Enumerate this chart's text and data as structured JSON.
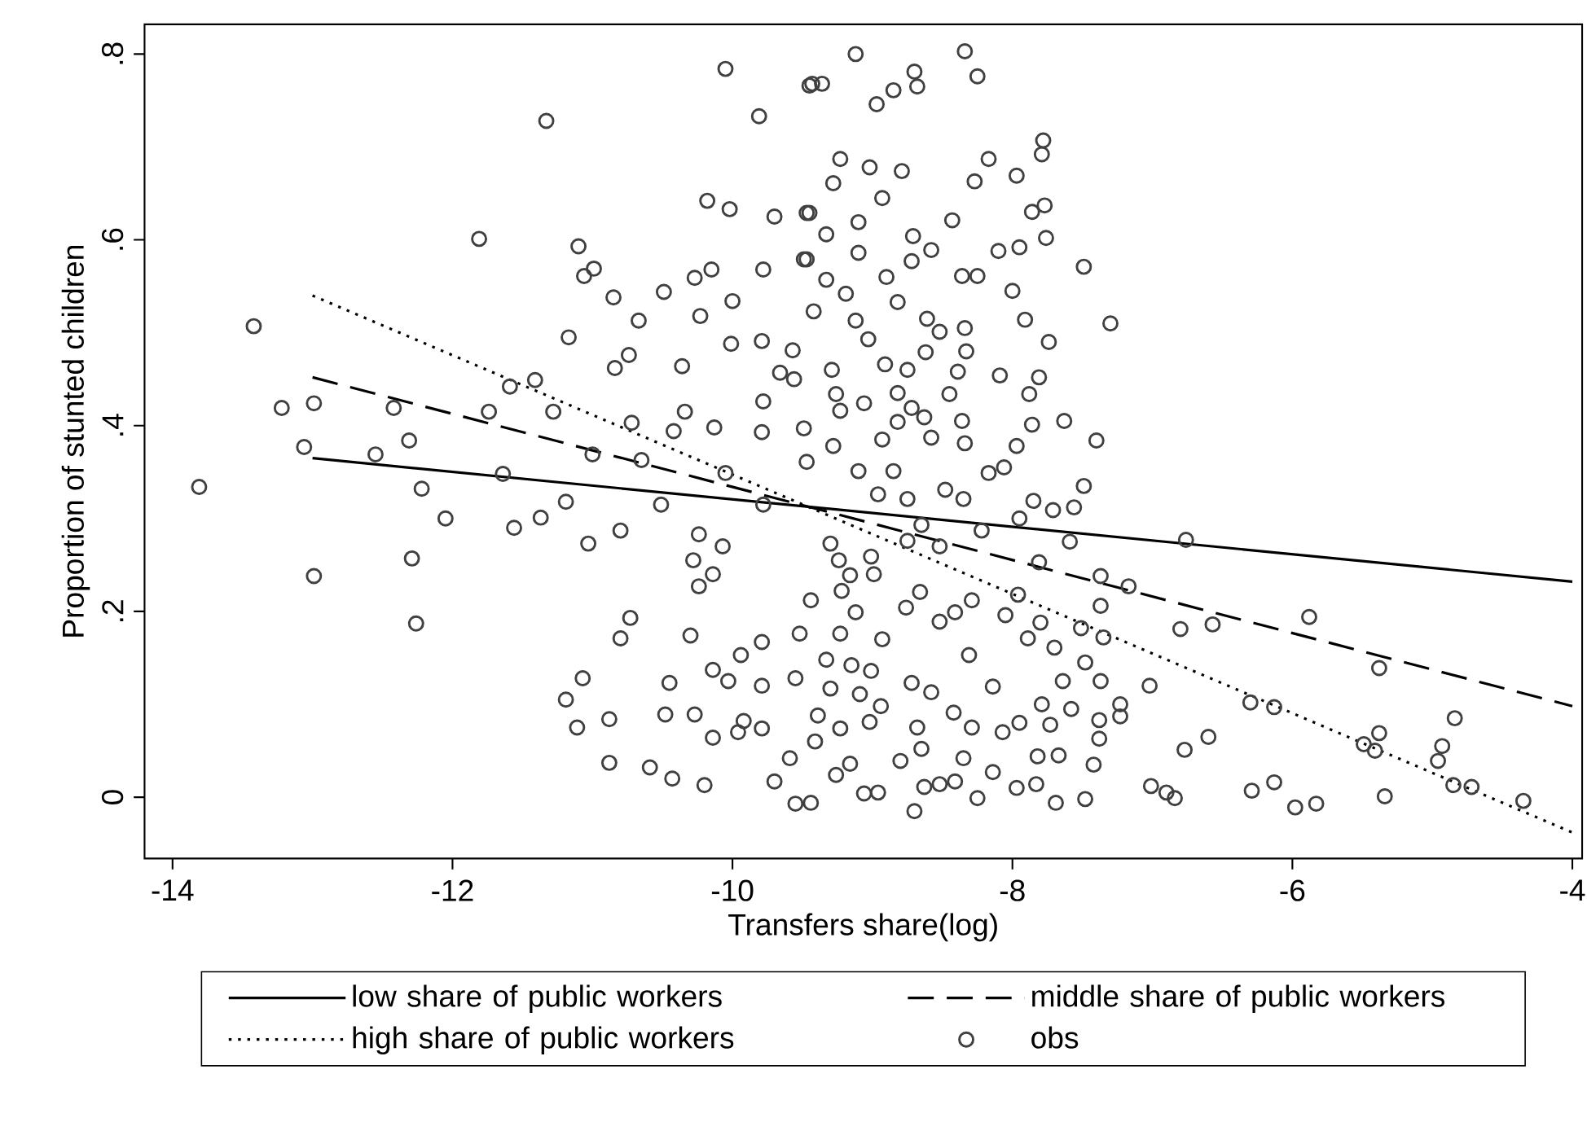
{
  "chart_data": {
    "type": "scatter",
    "xlabel": "Transfers share(log)",
    "ylabel": "Proportion of stunted children",
    "xlim": [
      -14.2,
      -3.93
    ],
    "ylim": [
      -0.066,
      0.832
    ],
    "xticks": [
      -14,
      -12,
      -10,
      -8,
      -6,
      -4
    ],
    "yticks": [
      {
        "value": 0,
        "label": "0"
      },
      {
        "value": 0.2,
        "label": ".2"
      },
      {
        "value": 0.4,
        "label": ".4"
      },
      {
        "value": 0.6,
        "label": ".6"
      },
      {
        "value": 0.8,
        "label": ".8"
      }
    ],
    "legend": "bottom",
    "grid": false,
    "series": [
      {
        "name": "low share of public workers",
        "type": "line",
        "color": "#000000",
        "line_style": "solid",
        "marker": "none",
        "x": [
          -13,
          -4
        ],
        "values": [
          0.365,
          0.232
        ]
      },
      {
        "name": "middle share of public workers",
        "type": "line",
        "color": "#000000",
        "line_style": "dashed",
        "marker": "none",
        "x": [
          -13,
          -4
        ],
        "values": [
          0.452,
          0.098
        ]
      },
      {
        "name": "high share of public workers",
        "type": "line",
        "color": "#000000",
        "line_style": "dotted",
        "marker": "none",
        "x": [
          -13,
          -4
        ],
        "values": [
          0.54,
          -0.038
        ]
      },
      {
        "name": "obs",
        "color": "#404040",
        "marker": "circle",
        "x": [
          -13.81,
          -13.42,
          -13.22,
          -12.99,
          -13.06,
          -12.99,
          -12.55,
          -12.42,
          -12.31,
          -12.22,
          -12.29,
          -12.26,
          -12.05,
          -11.81,
          -11.74,
          -11.59,
          -11.64,
          -11.56,
          -11.33,
          -11.41,
          -11.28,
          -11.37,
          -11.19,
          -11.17,
          -11.1,
          -11.06,
          -10.99,
          -10.85,
          -11.03,
          -11.0,
          -11.19,
          -11.11,
          -11.07,
          -10.88,
          -10.88,
          -10.84,
          -10.74,
          -10.67,
          -10.8,
          -10.73,
          -10.8,
          -10.72,
          -10.65,
          -10.59,
          -10.49,
          -10.51,
          -10.45,
          -10.48,
          -10.43,
          -10.36,
          -10.34,
          -10.42,
          -10.27,
          -10.23,
          -10.24,
          -10.28,
          -10.24,
          -10.3,
          -10.27,
          -10.2,
          -10.15,
          -10.13,
          -10.14,
          -10.14,
          -10.14,
          -10.05,
          -10.18,
          -10.02,
          -10.0,
          -10.01,
          -10.07,
          -10.03,
          -10.05,
          -9.96,
          -9.92,
          -9.94,
          -9.81,
          -9.78,
          -9.7,
          -9.79,
          -9.78,
          -9.79,
          -9.79,
          -9.79,
          -9.79,
          -9.7,
          -9.78,
          -9.66,
          -9.45,
          -9.45,
          -9.47,
          -9.55,
          -8.34,
          -9.12,
          -9.43,
          -9.36,
          -8.97,
          -8.7,
          -8.68,
          -8.85,
          -8.25,
          -7.78,
          -7.79,
          -9.23,
          -9.02,
          -8.79,
          -8.17,
          -9.28,
          -8.27,
          -7.97,
          -9.47,
          -8.93,
          -7.77,
          -7.86,
          -7.76,
          -8.43,
          -8.71,
          -9.1,
          -9.33,
          -9.49,
          -9.1,
          -8.58,
          -8.72,
          -8.1,
          -7.95,
          -7.49,
          -8.9,
          -9.33,
          -8.25,
          -8.36,
          -8.0,
          -9.19,
          -8.82,
          -9.42,
          -9.12,
          -8.61,
          -8.52,
          -7.91,
          -7.3,
          -8.34,
          -9.03,
          -7.74,
          -9.57,
          -8.62,
          -8.33,
          -9.29,
          -8.91,
          -8.75,
          -8.39,
          -8.09,
          -7.81,
          -9.56,
          -9.26,
          -8.82,
          -8.45,
          -7.88,
          -9.06,
          -8.72,
          -9.23,
          -8.63,
          -7.63,
          -9.49,
          -7.86,
          -8.82,
          -8.36,
          -7.4,
          -9.28,
          -8.93,
          -8.58,
          -8.34,
          -7.97,
          -9.47,
          -8.85,
          -9.1,
          -8.17,
          -8.06,
          -7.49,
          -8.48,
          -8.96,
          -8.75,
          -8.35,
          -7.85,
          -7.71,
          -7.56,
          -7.95,
          -8.22,
          -8.65,
          -7.59,
          -6.76,
          -8.52,
          -9.3,
          -8.75,
          -9.24,
          -9.01,
          -7.81,
          -7.37,
          -7.17,
          -8.99,
          -9.16,
          -8.66,
          -9.22,
          -8.29,
          -9.44,
          -7.96,
          -7.37,
          -5.88,
          -6.57,
          -6.8,
          -8.05,
          -8.76,
          -9.12,
          -8.41,
          -7.8,
          -7.51,
          -7.35,
          -7.89,
          -9.52,
          -8.52,
          -8.93,
          -9.23,
          -8.31,
          -7.7,
          -5.38,
          -7.48,
          -9.33,
          -9.15,
          -8.72,
          -7.64,
          -7.02,
          -9.01,
          -8.14,
          -9.55,
          -9.3,
          -7.37,
          -8.58,
          -9.09,
          -6.3,
          -6.13,
          -7.23,
          -7.79,
          -7.58,
          -4.84,
          -7.23,
          -8.94,
          -9.39,
          -8.42,
          -7.95,
          -7.38,
          -9.02,
          -7.73,
          -9.23,
          -8.29,
          -8.68,
          -6.6,
          -6.77,
          -5.38,
          -4.93,
          -5.49,
          -7.38,
          -8.07,
          -5.41,
          -4.96,
          -9.41,
          -8.65,
          -7.82,
          -9.59,
          -9.16,
          -8.8,
          -7.67,
          -8.35,
          -7.42,
          -8.14,
          -9.26,
          -8.52,
          -7.97,
          -7.83,
          -7.01,
          -6.9,
          -6.84,
          -6.29,
          -6.13,
          -4.85,
          -4.72,
          -4.35,
          -5.98,
          -5.83,
          -5.34,
          -7.48,
          -7.69,
          -8.25,
          -8.41,
          -8.63,
          -8.96,
          -9.06,
          -8.7,
          -9.44
        ],
        "values": [
          0.334,
          0.507,
          0.419,
          0.424,
          0.377,
          0.238,
          0.369,
          0.419,
          0.384,
          0.332,
          0.257,
          0.187,
          0.3,
          0.601,
          0.415,
          0.442,
          0.348,
          0.29,
          0.728,
          0.449,
          0.415,
          0.301,
          0.318,
          0.495,
          0.593,
          0.561,
          0.569,
          0.538,
          0.273,
          0.369,
          0.105,
          0.075,
          0.128,
          0.084,
          0.037,
          0.462,
          0.476,
          0.513,
          0.287,
          0.193,
          0.171,
          0.403,
          0.363,
          0.032,
          0.544,
          0.315,
          0.123,
          0.089,
          0.02,
          0.464,
          0.415,
          0.394,
          0.559,
          0.518,
          0.283,
          0.255,
          0.227,
          0.174,
          0.089,
          0.013,
          0.568,
          0.398,
          0.24,
          0.137,
          0.064,
          0.784,
          0.642,
          0.633,
          0.534,
          0.488,
          0.27,
          0.125,
          0.349,
          0.07,
          0.082,
          0.153,
          0.733,
          0.568,
          0.625,
          0.491,
          0.426,
          0.393,
          0.167,
          0.12,
          0.074,
          0.017,
          0.315,
          0.457,
          0.766,
          0.629,
          0.579,
          -0.007,
          0.803,
          0.8,
          0.768,
          0.768,
          0.746,
          0.781,
          0.765,
          0.761,
          0.776,
          0.707,
          0.692,
          0.687,
          0.678,
          0.674,
          0.687,
          0.661,
          0.663,
          0.669,
          0.629,
          0.645,
          0.637,
          0.63,
          0.602,
          0.621,
          0.604,
          0.619,
          0.606,
          0.579,
          0.586,
          0.589,
          0.577,
          0.588,
          0.592,
          0.571,
          0.56,
          0.557,
          0.561,
          0.561,
          0.545,
          0.542,
          0.533,
          0.523,
          0.513,
          0.515,
          0.501,
          0.514,
          0.51,
          0.505,
          0.493,
          0.49,
          0.481,
          0.479,
          0.48,
          0.46,
          0.466,
          0.46,
          0.458,
          0.454,
          0.452,
          0.45,
          0.434,
          0.435,
          0.434,
          0.434,
          0.424,
          0.419,
          0.416,
          0.409,
          0.405,
          0.397,
          0.401,
          0.404,
          0.405,
          0.384,
          0.378,
          0.385,
          0.387,
          0.381,
          0.378,
          0.361,
          0.351,
          0.351,
          0.349,
          0.355,
          0.335,
          0.331,
          0.326,
          0.321,
          0.321,
          0.319,
          0.309,
          0.312,
          0.3,
          0.287,
          0.293,
          0.275,
          0.277,
          0.27,
          0.273,
          0.276,
          0.255,
          0.259,
          0.253,
          0.238,
          0.227,
          0.24,
          0.239,
          0.221,
          0.222,
          0.212,
          0.212,
          0.218,
          0.206,
          0.194,
          0.186,
          0.181,
          0.196,
          0.204,
          0.199,
          0.199,
          0.188,
          0.182,
          0.172,
          0.171,
          0.176,
          0.189,
          0.17,
          0.176,
          0.153,
          0.161,
          0.139,
          0.145,
          0.148,
          0.142,
          0.123,
          0.125,
          0.12,
          0.136,
          0.119,
          0.128,
          0.117,
          0.125,
          0.113,
          0.111,
          0.102,
          0.097,
          0.1,
          0.1,
          0.095,
          0.085,
          0.087,
          0.098,
          0.088,
          0.091,
          0.08,
          0.083,
          0.081,
          0.078,
          0.074,
          0.075,
          0.075,
          0.065,
          0.051,
          0.069,
          0.055,
          0.057,
          0.063,
          0.07,
          0.05,
          0.039,
          0.06,
          0.052,
          0.044,
          0.042,
          0.036,
          0.039,
          0.045,
          0.042,
          0.035,
          0.027,
          0.024,
          0.014,
          0.01,
          0.014,
          0.012,
          0.005,
          -0.001,
          0.007,
          0.016,
          0.013,
          0.011,
          -0.004,
          -0.011,
          -0.007,
          0.001,
          -0.002,
          -0.006,
          -0.001,
          0.017,
          0.011,
          0.005,
          0.004,
          -0.015,
          -0.006
        ]
      }
    ]
  }
}
